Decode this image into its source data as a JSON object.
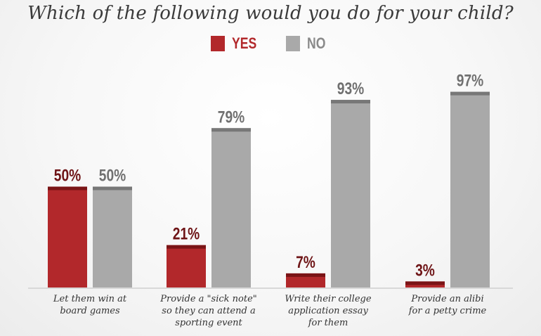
{
  "chart_data": {
    "type": "bar",
    "title": "Which of the following would you do for your child?",
    "categories": [
      [
        "Let them win at",
        "board games"
      ],
      [
        "Provide a \"sick note\"",
        "so they can attend a",
        "sporting event"
      ],
      [
        "Write their college",
        "application essay",
        "for them"
      ],
      [
        "Provide an alibi",
        "for a petty crime"
      ]
    ],
    "series": [
      {
        "name": "YES",
        "values": [
          50,
          21,
          7,
          3
        ],
        "labels": [
          "50%",
          "21%",
          "7%",
          "3%"
        ],
        "color": "#b2282b",
        "cap_color": "#7a1416",
        "label_color": "#6e1416"
      },
      {
        "name": "NO",
        "values": [
          50,
          79,
          93,
          97
        ],
        "labels": [
          "50%",
          "79%",
          "93%",
          "97%"
        ],
        "color": "#a9a9a9",
        "cap_color": "#777777",
        "label_color": "#707070"
      }
    ],
    "ylim": [
      0,
      100
    ],
    "grid": false,
    "legend": "top-center"
  },
  "legend": [
    {
      "label": "YES",
      "color": "#b2282b"
    },
    {
      "label": "NO",
      "color": "#a9a9a9"
    }
  ]
}
